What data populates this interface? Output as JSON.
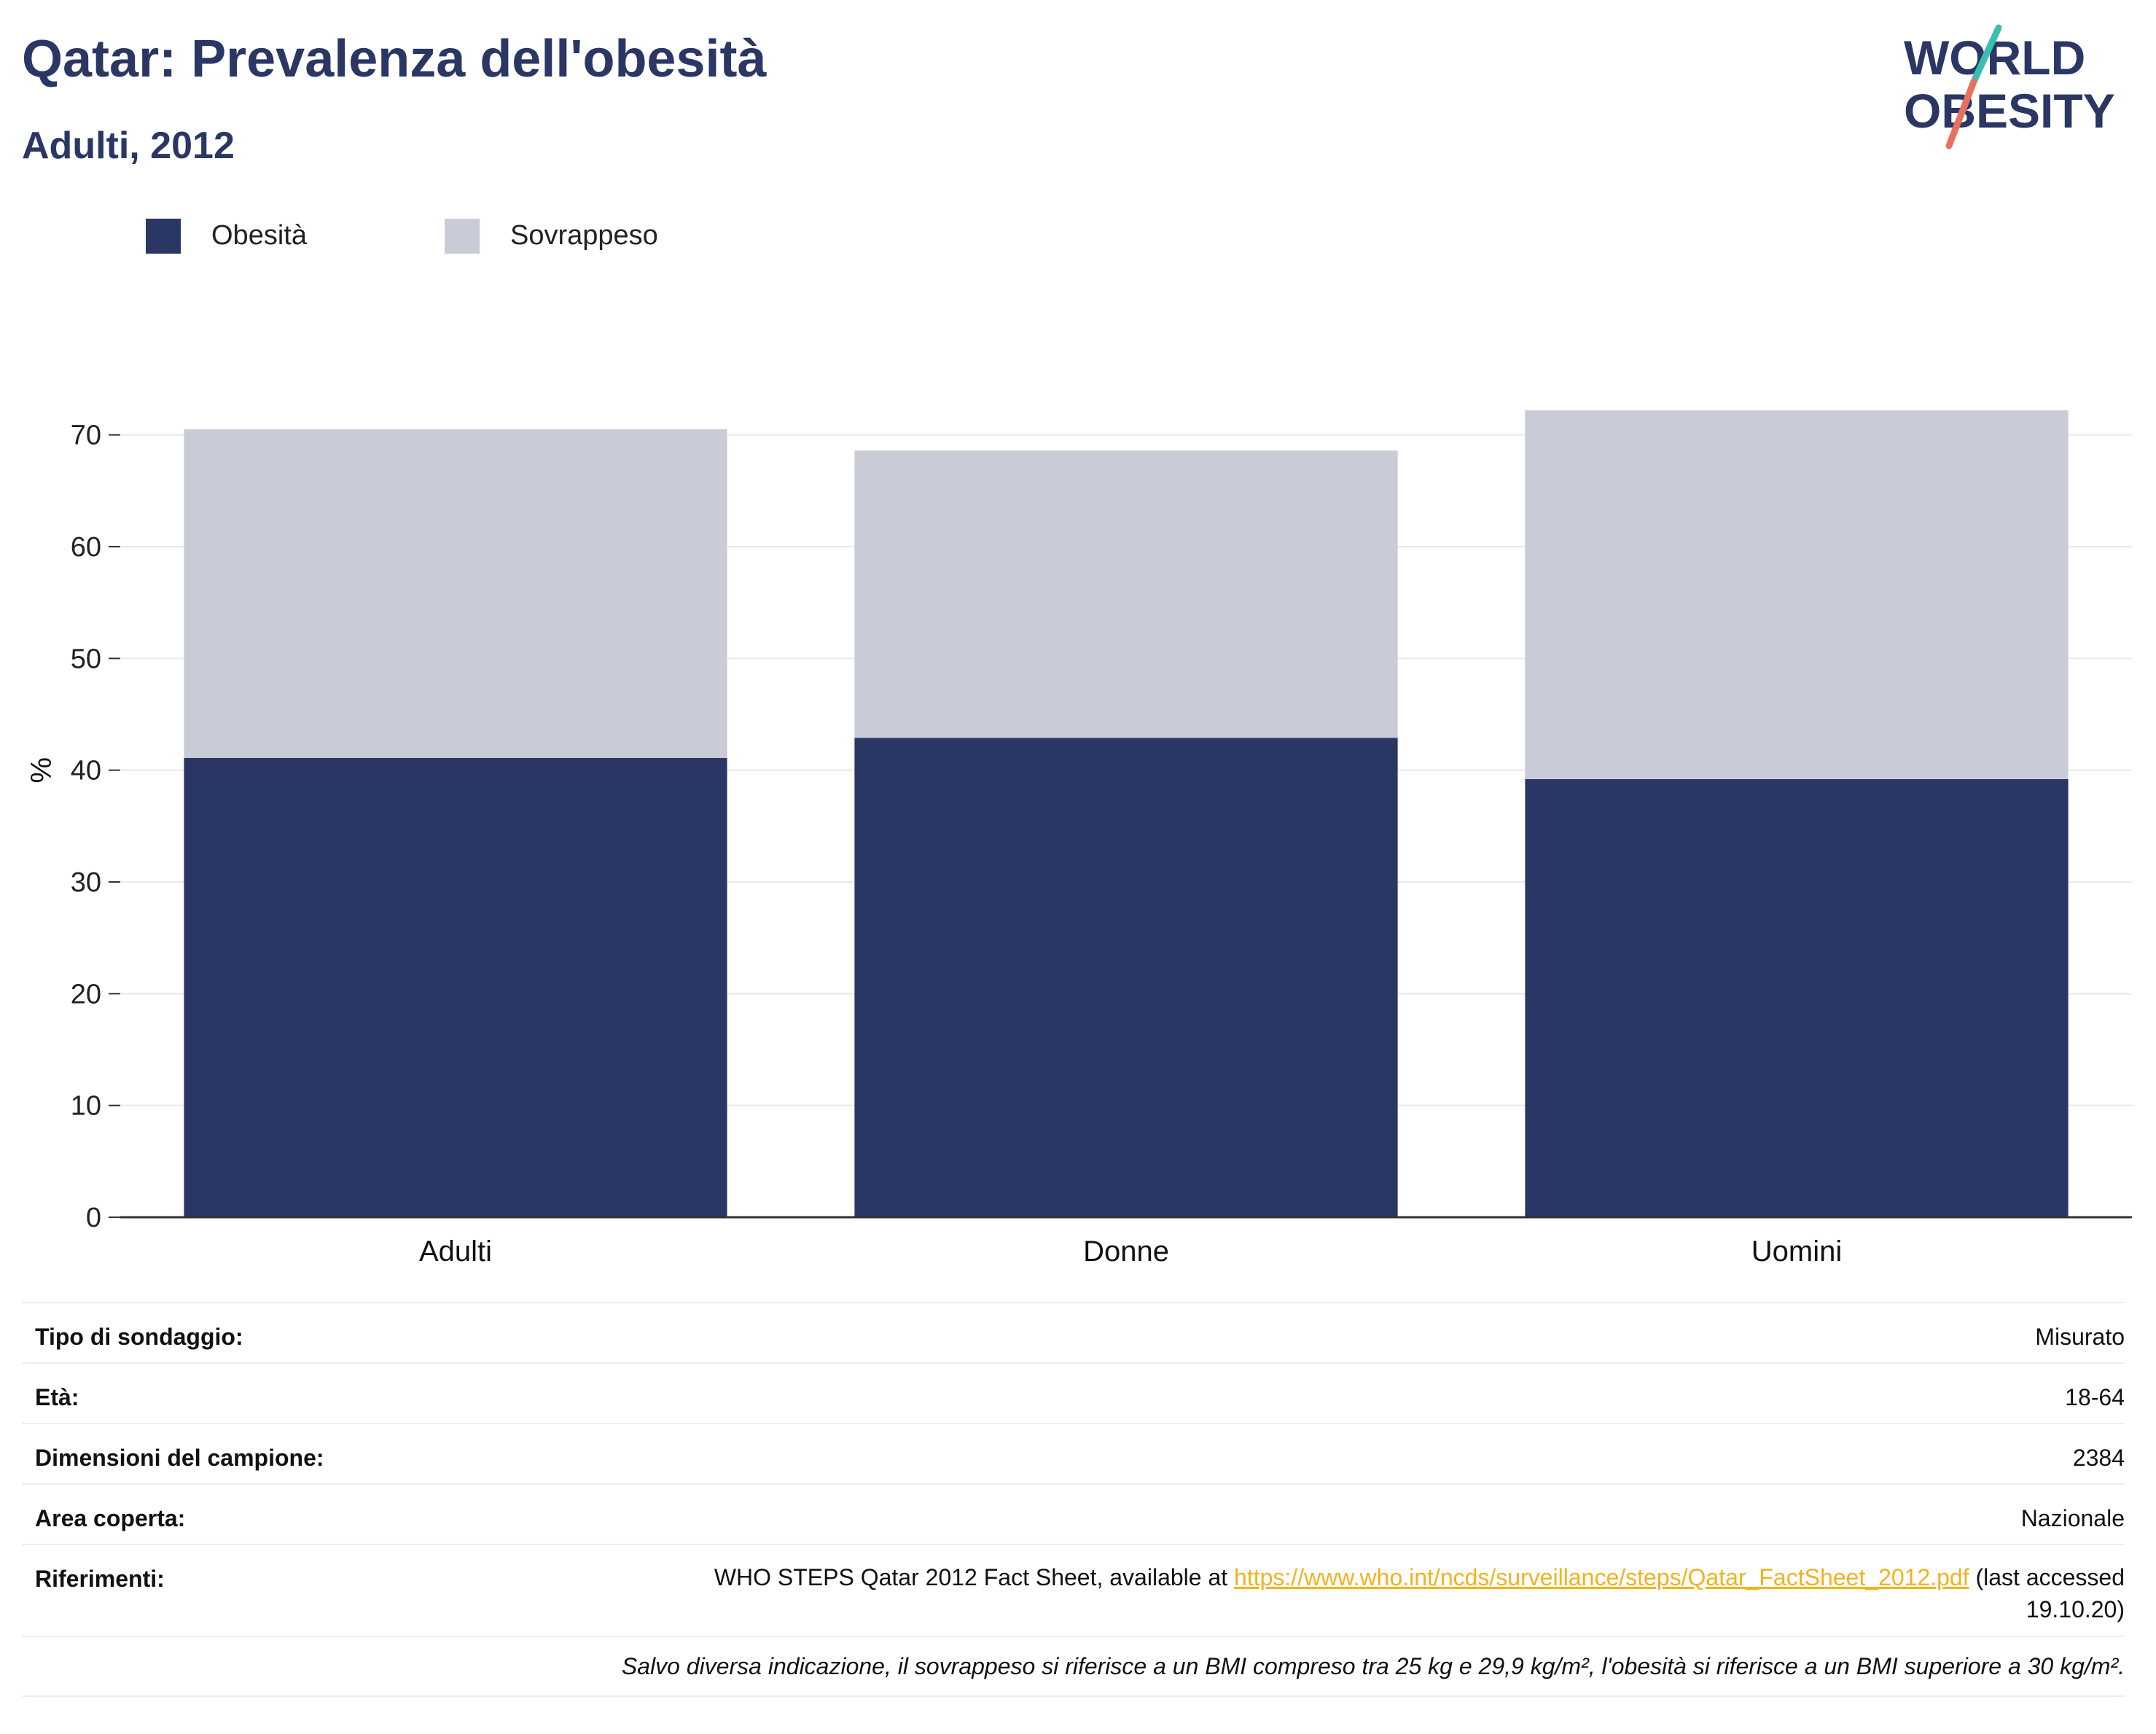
{
  "header": {
    "title": "Qatar: Prevalenza dell'obesità",
    "subtitle": "Adulti, 2012",
    "logo_line1": "WORLD",
    "logo_line2": "OBESITY"
  },
  "colors": {
    "obesity": "#2a3764",
    "overweight": "#c9cbd7",
    "title": "#2a3764",
    "link": "#f2b21e",
    "logo_teal": "#3bbdb5",
    "logo_coral": "#e8705f"
  },
  "chart_data": {
    "type": "bar",
    "stacked": true,
    "categories": [
      "Adulti",
      "Donne",
      "Uomini"
    ],
    "series": [
      {
        "name": "Obesità",
        "values": [
          41.1,
          42.9,
          39.2
        ]
      },
      {
        "name": "Sovrappeso",
        "values": [
          29.4,
          25.7,
          33.0
        ]
      }
    ],
    "ylabel": "%",
    "ylim": [
      0,
      75
    ],
    "yticks": [
      0,
      10,
      20,
      30,
      40,
      50,
      60,
      70
    ],
    "grid": true,
    "legend_position": "top-left"
  },
  "info": {
    "survey_type_label": "Tipo di sondaggio:",
    "survey_type_value": "Misurato",
    "age_label": "Età:",
    "age_value": "18-64",
    "sample_label": "Dimensioni del campione:",
    "sample_value": "2384",
    "area_label": "Area coperta:",
    "area_value": "Nazionale",
    "ref_label": "Riferimenti:",
    "ref_text_before": "WHO STEPS Qatar 2012 Fact Sheet, available at ",
    "ref_link": "https://www.who.int/ncds/surveillance/steps/Qatar_FactSheet_2012.pdf",
    "ref_text_after": " (last accessed 19.10.20)",
    "note": "Salvo diversa indicazione, il sovrappeso si riferisce a un BMI compreso tra 25 kg e 29,9 kg/m², l'obesità si riferisce a un BMI superiore a 30 kg/m²."
  }
}
